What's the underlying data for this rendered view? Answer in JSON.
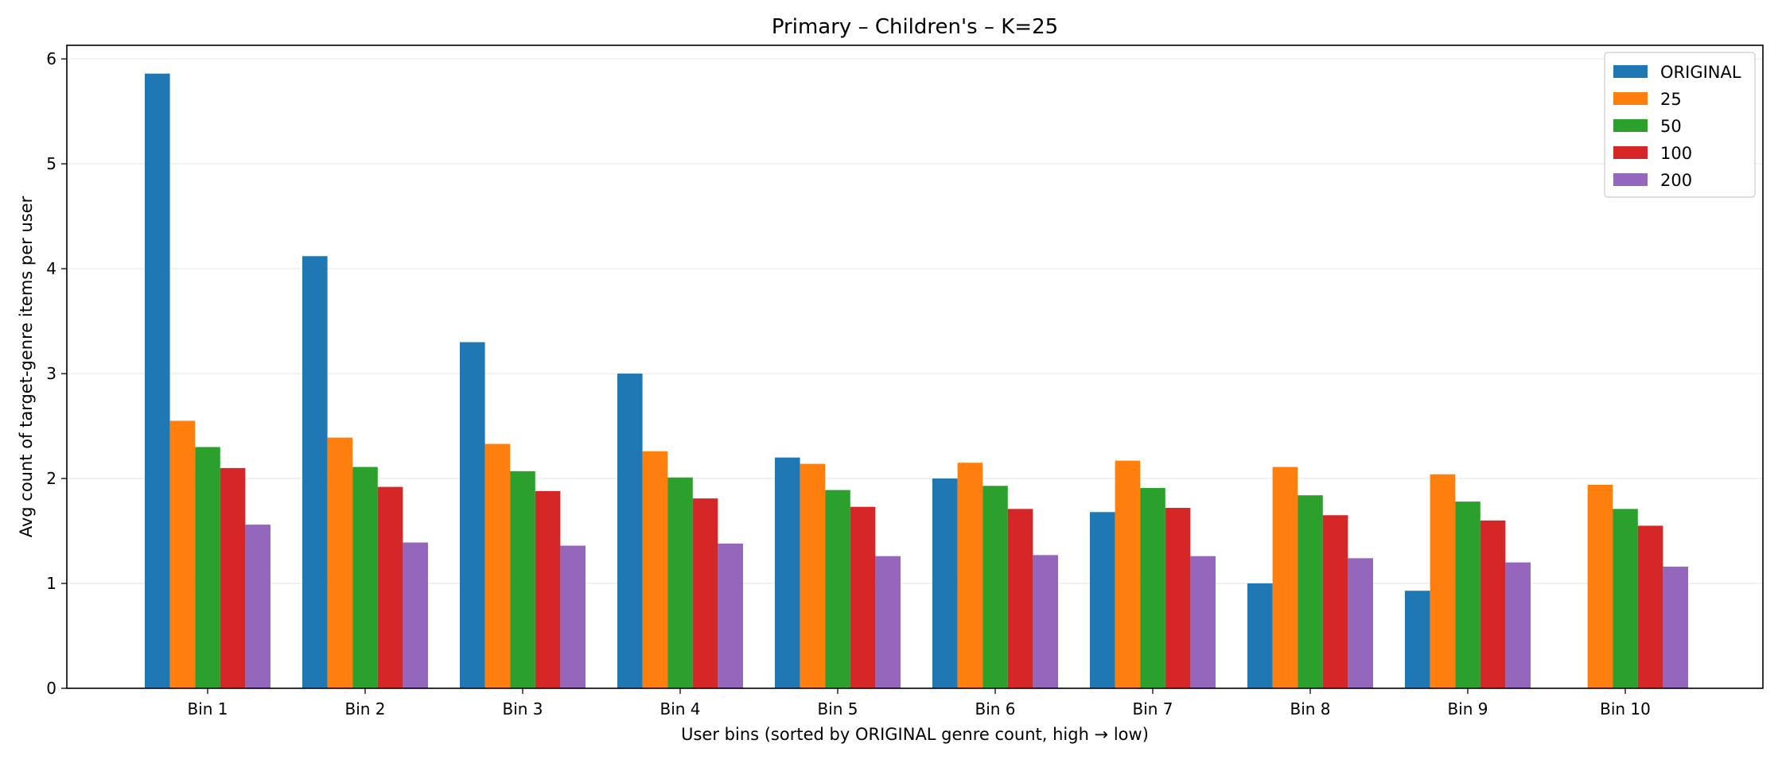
{
  "chart_data": {
    "type": "bar",
    "title": "Primary – Children's – K=25",
    "xlabel": "User bins (sorted by ORIGINAL genre count, high → low)",
    "ylabel": "Avg count of target-genre items per user",
    "categories": [
      "Bin 1",
      "Bin 2",
      "Bin 3",
      "Bin 4",
      "Bin 5",
      "Bin 6",
      "Bin 7",
      "Bin 8",
      "Bin 9",
      "Bin 10"
    ],
    "ylim": [
      0,
      6.13
    ],
    "yticks": [
      0,
      1,
      2,
      3,
      4,
      5,
      6
    ],
    "grid": "horizontal",
    "legend_position": "top-right",
    "series": [
      {
        "name": "ORIGINAL",
        "color": "#1f77b4",
        "values": [
          5.86,
          4.12,
          3.3,
          3.0,
          2.2,
          2.0,
          1.68,
          1.0,
          0.93,
          0
        ]
      },
      {
        "name": "25",
        "color": "#ff7f0e",
        "values": [
          2.55,
          2.39,
          2.33,
          2.26,
          2.14,
          2.15,
          2.17,
          2.11,
          2.04,
          1.94
        ]
      },
      {
        "name": "50",
        "color": "#2ca02c",
        "values": [
          2.3,
          2.11,
          2.07,
          2.01,
          1.89,
          1.93,
          1.91,
          1.84,
          1.78,
          1.71
        ]
      },
      {
        "name": "100",
        "color": "#d62728",
        "values": [
          2.1,
          1.92,
          1.88,
          1.81,
          1.73,
          1.71,
          1.72,
          1.65,
          1.6,
          1.55
        ]
      },
      {
        "name": "200",
        "color": "#9467bd",
        "values": [
          1.56,
          1.39,
          1.36,
          1.38,
          1.26,
          1.27,
          1.26,
          1.24,
          1.2,
          1.16
        ]
      }
    ]
  }
}
